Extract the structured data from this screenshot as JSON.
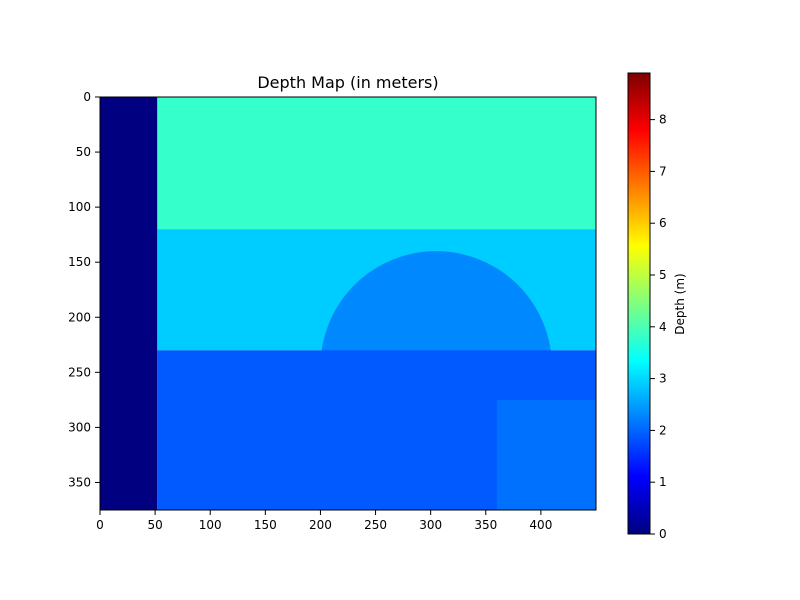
{
  "chart_data": {
    "type": "heatmap",
    "title": "Depth Map (in meters)",
    "xlabel": "",
    "ylabel": "",
    "x_ticks": [
      0,
      50,
      100,
      150,
      200,
      250,
      300,
      350,
      400
    ],
    "y_ticks": [
      0,
      50,
      100,
      150,
      200,
      250,
      300,
      350
    ],
    "xlim": [
      0,
      450
    ],
    "ylim": [
      375,
      0
    ],
    "colorbar": {
      "label": "Depth (m)",
      "range": [
        0,
        8.9
      ],
      "ticks": [
        0,
        1,
        2,
        3,
        4,
        5,
        6,
        7,
        8
      ],
      "colormap": "jet"
    },
    "colormap_colors": [
      "#00007f",
      "#0000ff",
      "#007fff",
      "#00ffff",
      "#7fff7f",
      "#ffff00",
      "#ff7f00",
      "#ff0000",
      "#7f0000"
    ],
    "regions": [
      {
        "label": "left border (no data)",
        "x": [
          0,
          52
        ],
        "y": [
          0,
          375
        ],
        "depth": 0
      },
      {
        "label": "upper background",
        "x": [
          52,
          450
        ],
        "y": [
          0,
          120
        ],
        "depth": 3.8
      },
      {
        "label": "mid background",
        "x": [
          52,
          450
        ],
        "y": [
          120,
          230
        ],
        "depth": 2.9
      },
      {
        "label": "circular object",
        "center": [
          305,
          245
        ],
        "radius": 105,
        "depth": 2.3
      },
      {
        "label": "foreground",
        "x": [
          52,
          450
        ],
        "y": [
          230,
          375
        ],
        "depth": 1.9
      },
      {
        "label": "lower right block",
        "x": [
          360,
          450
        ],
        "y": [
          275,
          375
        ],
        "depth": 2.1
      }
    ]
  }
}
